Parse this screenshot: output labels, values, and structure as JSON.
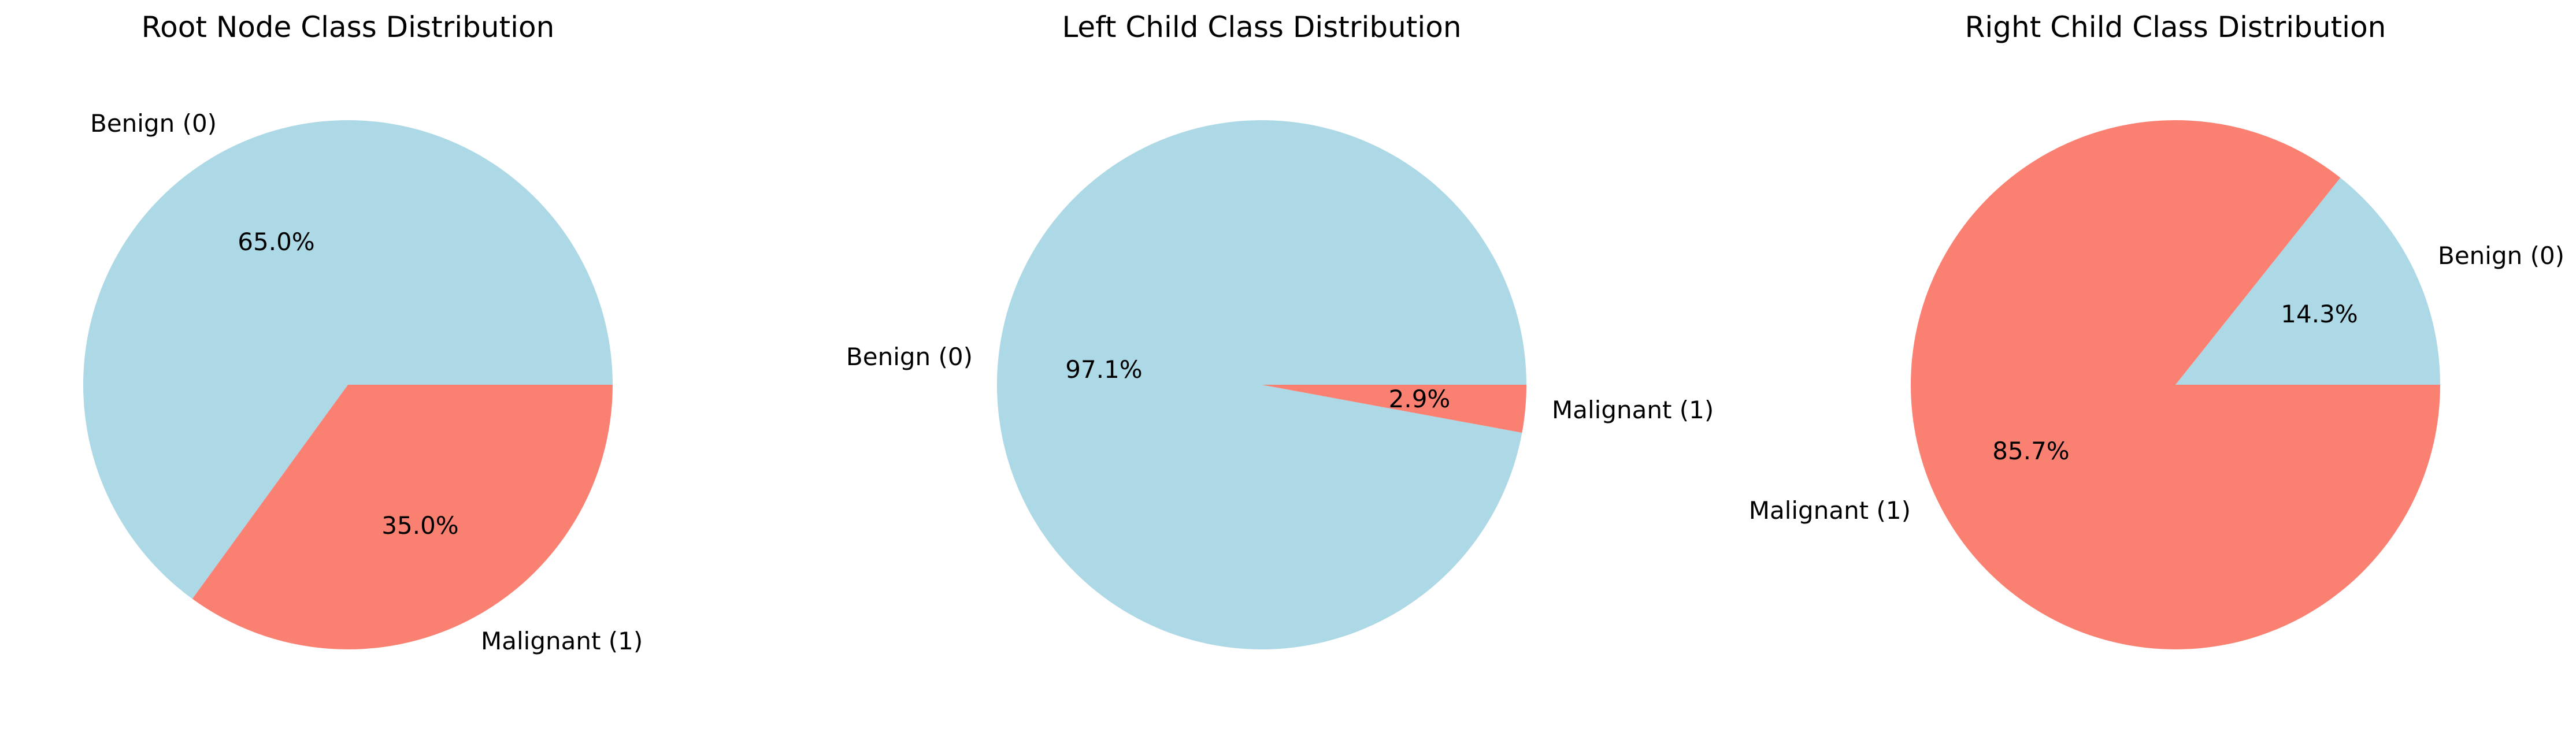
{
  "chart_data": [
    {
      "type": "pie",
      "title": "Root Node Class Distribution",
      "categories": [
        "Benign (0)",
        "Malignant (1)"
      ],
      "values": [
        65.0,
        35.0
      ],
      "percent_labels": [
        "65.0%",
        "35.0%"
      ],
      "colors": [
        "#add8e6",
        "#fa8072"
      ]
    },
    {
      "type": "pie",
      "title": "Left Child Class Distribution",
      "categories": [
        "Benign (0)",
        "Malignant (1)"
      ],
      "values": [
        97.1,
        2.9
      ],
      "percent_labels": [
        "97.1%",
        "2.9%"
      ],
      "colors": [
        "#add8e6",
        "#fa8072"
      ]
    },
    {
      "type": "pie",
      "title": "Right Child Class Distribution",
      "categories": [
        "Benign (0)",
        "Malignant (1)"
      ],
      "values": [
        14.3,
        85.7
      ],
      "percent_labels": [
        "14.3%",
        "85.7%"
      ],
      "colors": [
        "#add8e6",
        "#fa8072"
      ]
    }
  ]
}
